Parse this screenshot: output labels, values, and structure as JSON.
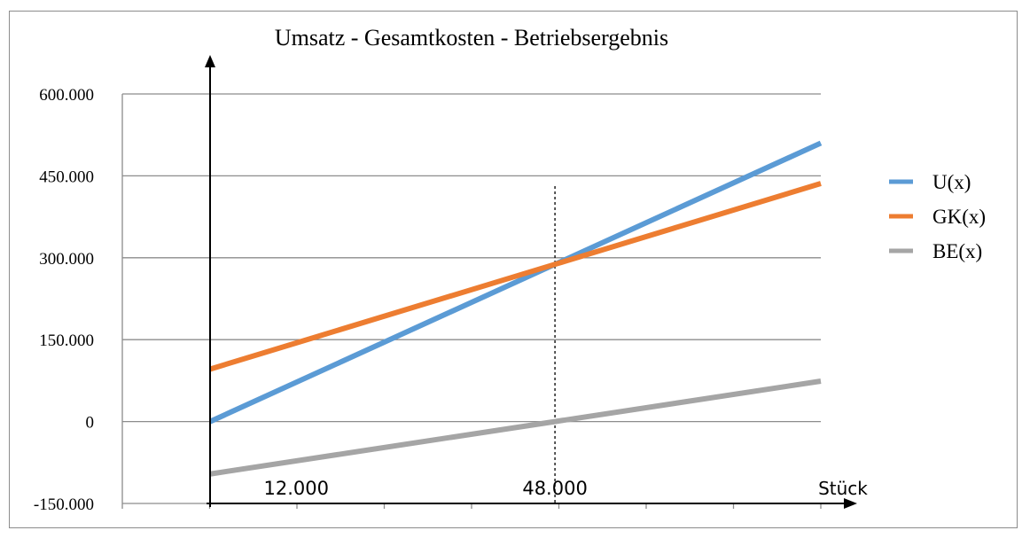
{
  "chart_data": {
    "type": "line",
    "title": "Umsatz - Gesamtkosten - Betriebsergebnis",
    "xlabel": "Stück",
    "ylabel": "",
    "x": [
      0,
      48000,
      85000
    ],
    "xlim": [
      0,
      85000
    ],
    "ylim": [
      -150000,
      600000
    ],
    "y_ticks": [
      -150000,
      0,
      150000,
      300000,
      450000,
      600000
    ],
    "y_tick_labels": [
      "-150.000",
      "0",
      "150.000",
      "300.000",
      "450.000",
      "600.000"
    ],
    "x_tick_labels": [
      {
        "value": 12000,
        "label": "12.000"
      },
      {
        "value": 48000,
        "label": "48.000"
      }
    ],
    "x_axis_label": "Stück",
    "grid": "horizontal",
    "legend_position": "right",
    "break_even_x": 48000,
    "series": [
      {
        "name": "U(x)",
        "color": "#5b9bd5",
        "x": [
          0,
          48000,
          85000
        ],
        "values": [
          0,
          288000,
          510000
        ]
      },
      {
        "name": "GK(x)",
        "color": "#ed7d31",
        "x": [
          0,
          48000,
          85000
        ],
        "values": [
          96000,
          288000,
          436000
        ]
      },
      {
        "name": "BE(x)",
        "color": "#a5a5a5",
        "x": [
          0,
          48000,
          85000
        ],
        "values": [
          -96000,
          0,
          74000
        ]
      }
    ]
  }
}
